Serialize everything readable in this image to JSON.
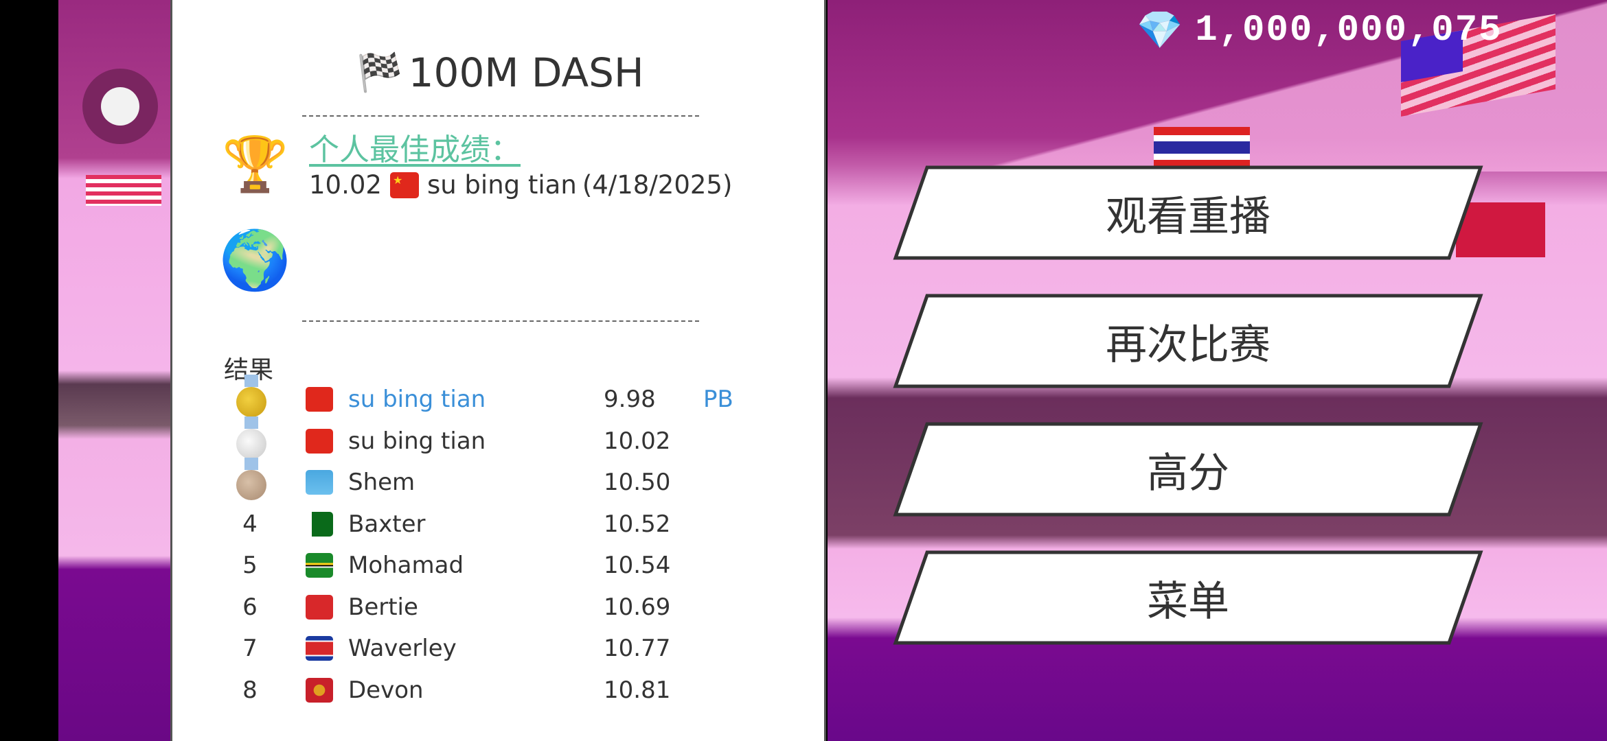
{
  "header": {
    "gems_icon": "diamond-icon",
    "gems": "1,000,000,075"
  },
  "panel": {
    "title_icon": "checkered-flag-icon",
    "title": "100M DASH",
    "personal_best_label": "个人最佳成绩：",
    "personal_best": {
      "time": "10.02",
      "country": "China",
      "name": "su bing tian",
      "date": "(4/18/2025)"
    },
    "results_label": "结果",
    "results": [
      {
        "rank": "1",
        "medal": "gold",
        "country": "China",
        "name": "su bing tian",
        "time": "9.98",
        "tag": "PB",
        "highlight": true
      },
      {
        "rank": "2",
        "medal": "silver",
        "country": "China",
        "name": "su bing tian",
        "time": "10.02"
      },
      {
        "rank": "3",
        "medal": "bronze",
        "country": "Kazakhstan",
        "name": "Shem",
        "time": "10.50"
      },
      {
        "rank": "4",
        "country": "Pakistan",
        "name": "Baxter",
        "time": "10.52"
      },
      {
        "rank": "5",
        "country": "Dominica",
        "name": "Mohamad",
        "time": "10.54"
      },
      {
        "rank": "6",
        "country": "Bermuda",
        "name": "Bertie",
        "time": "10.69"
      },
      {
        "rank": "7",
        "country": "North Korea",
        "name": "Waverley",
        "time": "10.77"
      },
      {
        "rank": "8",
        "country": "Montenegro",
        "name": "Devon",
        "time": "10.81"
      }
    ]
  },
  "menu": {
    "watch_replay": "观看重播",
    "race_again": "再次比赛",
    "high_scores": "高分",
    "menu": "菜单"
  },
  "colors": {
    "pb_label": "#5cc3a0",
    "highlight": "#3a8fd8",
    "scene": "#9a2a80"
  }
}
